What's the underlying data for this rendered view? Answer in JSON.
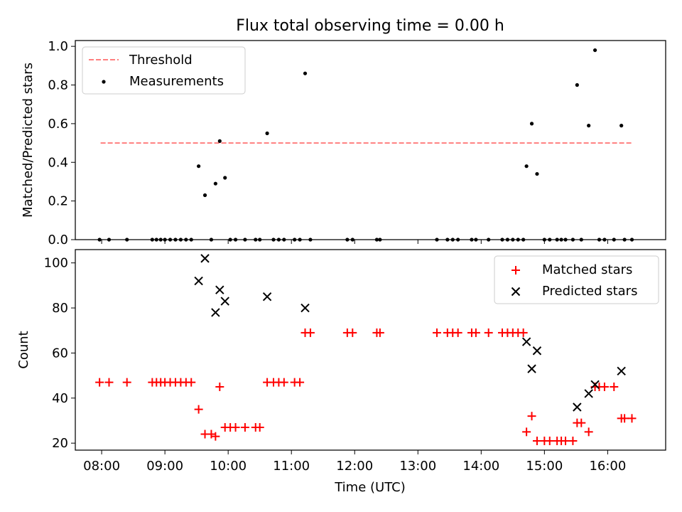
{
  "title": "Flux total observing time = 0.00 h",
  "colors": {
    "threshold": "#ff7f7f",
    "measurements": "#000000",
    "matched": "#ff0000",
    "predicted": "#000000"
  },
  "chart_data": [
    {
      "type": "scatter",
      "panel": "top",
      "ylabel": "Matched/Predicted stars",
      "xlabel": "",
      "ylim": [
        0.0,
        1.03
      ],
      "yticks": [
        0.0,
        0.2,
        0.4,
        0.6,
        0.8,
        1.0
      ],
      "ytick_labels": [
        "0.0",
        "0.2",
        "0.4",
        "0.6",
        "0.8",
        "1.0"
      ],
      "xticks": [
        "08:00",
        "09:00",
        "10:00",
        "11:00",
        "12:00",
        "13:00",
        "14:00",
        "15:00",
        "16:00"
      ],
      "grid": false,
      "legend": {
        "placement": "upper left",
        "entries": [
          "Threshold",
          "Measurements"
        ]
      },
      "series": [
        {
          "name": "Threshold",
          "kind": "dashed-line",
          "points": [
            [
              "07:59",
              0.5
            ],
            [
              "16:23",
              0.5
            ]
          ]
        },
        {
          "name": "Measurements",
          "kind": "dot",
          "points": [
            [
              "07:58",
              0.0
            ],
            [
              "08:07",
              0.0
            ],
            [
              "08:24",
              0.0
            ],
            [
              "08:48",
              0.0
            ],
            [
              "08:52",
              0.0
            ],
            [
              "08:56",
              0.0
            ],
            [
              "09:00",
              0.0
            ],
            [
              "09:05",
              0.0
            ],
            [
              "09:10",
              0.0
            ],
            [
              "09:15",
              0.0
            ],
            [
              "09:20",
              0.0
            ],
            [
              "09:25",
              0.0
            ],
            [
              "09:32",
              0.38
            ],
            [
              "09:38",
              0.23
            ],
            [
              "09:44",
              0.0
            ],
            [
              "09:48",
              0.29
            ],
            [
              "09:52",
              0.51
            ],
            [
              "09:57",
              0.32
            ],
            [
              "10:02",
              0.0
            ],
            [
              "10:07",
              0.0
            ],
            [
              "10:16",
              0.0
            ],
            [
              "10:26",
              0.0
            ],
            [
              "10:30",
              0.0
            ],
            [
              "10:37",
              0.55
            ],
            [
              "10:43",
              0.0
            ],
            [
              "10:48",
              0.0
            ],
            [
              "10:53",
              0.0
            ],
            [
              "11:03",
              0.0
            ],
            [
              "11:08",
              0.0
            ],
            [
              "11:13",
              0.86
            ],
            [
              "11:18",
              0.0
            ],
            [
              "11:53",
              0.0
            ],
            [
              "11:58",
              0.0
            ],
            [
              "12:21",
              0.0
            ],
            [
              "12:24",
              0.0
            ],
            [
              "13:18",
              0.0
            ],
            [
              "13:28",
              0.0
            ],
            [
              "13:33",
              0.0
            ],
            [
              "13:38",
              0.0
            ],
            [
              "13:51",
              0.0
            ],
            [
              "13:55",
              0.0
            ],
            [
              "14:07",
              0.0
            ],
            [
              "14:20",
              0.0
            ],
            [
              "14:25",
              0.0
            ],
            [
              "14:30",
              0.0
            ],
            [
              "14:35",
              0.0
            ],
            [
              "14:40",
              0.0
            ],
            [
              "14:43",
              0.38
            ],
            [
              "14:48",
              0.6
            ],
            [
              "14:53",
              0.34
            ],
            [
              "15:00",
              0.0
            ],
            [
              "15:05",
              0.0
            ],
            [
              "15:12",
              0.0
            ],
            [
              "15:16",
              0.0
            ],
            [
              "15:20",
              0.0
            ],
            [
              "15:27",
              0.0
            ],
            [
              "15:31",
              0.8
            ],
            [
              "15:35",
              0.0
            ],
            [
              "15:42",
              0.59
            ],
            [
              "15:48",
              0.98
            ],
            [
              "15:52",
              0.0
            ],
            [
              "15:57",
              0.0
            ],
            [
              "16:06",
              0.0
            ],
            [
              "16:13",
              0.59
            ],
            [
              "16:16",
              0.0
            ],
            [
              "16:23",
              0.0
            ]
          ]
        }
      ]
    },
    {
      "type": "scatter",
      "panel": "bottom",
      "xlabel": "Time (UTC)",
      "ylabel": "Count",
      "ylim": [
        16.9,
        105.9
      ],
      "yticks": [
        20,
        40,
        60,
        80,
        100
      ],
      "ytick_labels": [
        "20",
        "40",
        "60",
        "80",
        "100"
      ],
      "xlim": [
        "07:35",
        "16:55"
      ],
      "xticks": [
        "08:00",
        "09:00",
        "10:00",
        "11:00",
        "12:00",
        "13:00",
        "14:00",
        "15:00",
        "16:00"
      ],
      "grid": false,
      "legend": {
        "placement": "upper right",
        "entries": [
          "Matched stars",
          "Predicted stars"
        ]
      },
      "series": [
        {
          "name": "Matched stars",
          "marker": "plus",
          "points": [
            [
              "07:58",
              47
            ],
            [
              "08:07",
              47
            ],
            [
              "08:24",
              47
            ],
            [
              "08:48",
              47
            ],
            [
              "08:52",
              47
            ],
            [
              "08:56",
              47
            ],
            [
              "09:00",
              47
            ],
            [
              "09:05",
              47
            ],
            [
              "09:10",
              47
            ],
            [
              "09:15",
              47
            ],
            [
              "09:20",
              47
            ],
            [
              "09:25",
              47
            ],
            [
              "09:32",
              35
            ],
            [
              "09:38",
              24
            ],
            [
              "09:44",
              24
            ],
            [
              "09:48",
              23
            ],
            [
              "09:52",
              45
            ],
            [
              "09:57",
              27
            ],
            [
              "10:02",
              27
            ],
            [
              "10:07",
              27
            ],
            [
              "10:16",
              27
            ],
            [
              "10:26",
              27
            ],
            [
              "10:30",
              27
            ],
            [
              "10:37",
              47
            ],
            [
              "10:43",
              47
            ],
            [
              "10:48",
              47
            ],
            [
              "10:53",
              47
            ],
            [
              "11:03",
              47
            ],
            [
              "11:08",
              47
            ],
            [
              "11:13",
              69
            ],
            [
              "11:18",
              69
            ],
            [
              "11:53",
              69
            ],
            [
              "11:58",
              69
            ],
            [
              "12:21",
              69
            ],
            [
              "12:24",
              69
            ],
            [
              "13:18",
              69
            ],
            [
              "13:28",
              69
            ],
            [
              "13:33",
              69
            ],
            [
              "13:38",
              69
            ],
            [
              "13:51",
              69
            ],
            [
              "13:55",
              69
            ],
            [
              "14:07",
              69
            ],
            [
              "14:20",
              69
            ],
            [
              "14:25",
              69
            ],
            [
              "14:30",
              69
            ],
            [
              "14:35",
              69
            ],
            [
              "14:40",
              69
            ],
            [
              "14:43",
              25
            ],
            [
              "14:48",
              32
            ],
            [
              "14:53",
              21
            ],
            [
              "15:00",
              21
            ],
            [
              "15:05",
              21
            ],
            [
              "15:12",
              21
            ],
            [
              "15:16",
              21
            ],
            [
              "15:20",
              21
            ],
            [
              "15:27",
              21
            ],
            [
              "15:31",
              29
            ],
            [
              "15:35",
              29
            ],
            [
              "15:42",
              25
            ],
            [
              "15:48",
              45
            ],
            [
              "15:52",
              45
            ],
            [
              "15:57",
              45
            ],
            [
              "16:06",
              45
            ],
            [
              "16:13",
              31
            ],
            [
              "16:16",
              31
            ],
            [
              "16:23",
              31
            ]
          ]
        },
        {
          "name": "Predicted stars",
          "marker": "x",
          "points": [
            [
              "09:32",
              92
            ],
            [
              "09:38",
              102
            ],
            [
              "09:48",
              78
            ],
            [
              "09:52",
              88
            ],
            [
              "09:57",
              83
            ],
            [
              "10:37",
              85
            ],
            [
              "11:13",
              80
            ],
            [
              "14:43",
              65
            ],
            [
              "14:48",
              53
            ],
            [
              "14:53",
              61
            ],
            [
              "15:31",
              36
            ],
            [
              "15:42",
              42
            ],
            [
              "15:48",
              46
            ],
            [
              "16:13",
              52
            ]
          ]
        }
      ]
    }
  ]
}
